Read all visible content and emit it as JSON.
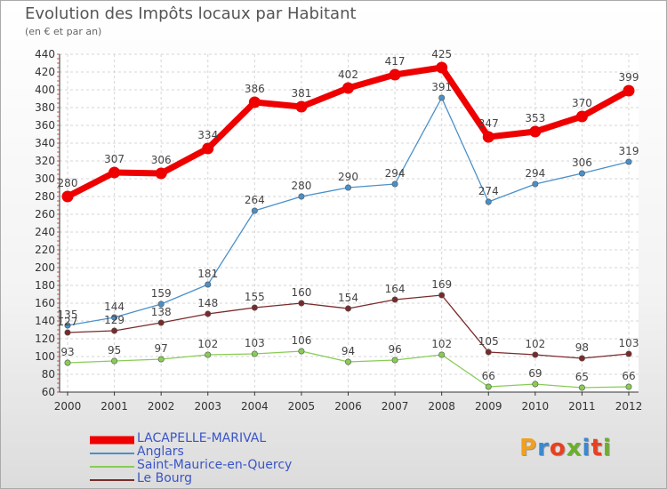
{
  "header": {
    "title": "Evolution des Impôts locaux par Habitant",
    "subtitle": "(en € et par an)"
  },
  "brand": {
    "name": "Proxiti",
    "letter_colors": [
      "#f0a020",
      "#3a88d0",
      "#e84020",
      "#6ab02a",
      "#3a88d0",
      "#e84020",
      "#6ab02a"
    ]
  },
  "chart_data": {
    "type": "line",
    "x": [
      "2000",
      "2001",
      "2002",
      "2003",
      "2004",
      "2005",
      "2006",
      "2007",
      "2008",
      "2009",
      "2010",
      "2011",
      "2012"
    ],
    "ylim": [
      60,
      440
    ],
    "yticks": [
      60,
      80,
      100,
      120,
      140,
      160,
      180,
      200,
      220,
      240,
      260,
      280,
      300,
      320,
      340,
      360,
      380,
      400,
      420,
      440
    ],
    "grid": true,
    "legend_position": "bottom-left",
    "series": [
      {
        "name": "LACAPELLE-MARIVAL",
        "color": "#ee0000",
        "values": [
          280,
          307,
          306,
          334,
          386,
          381,
          402,
          417,
          425,
          347,
          353,
          370,
          399
        ]
      },
      {
        "name": "Anglars",
        "color": "#4a90c8",
        "values": [
          135,
          144,
          159,
          181,
          264,
          280,
          290,
          294,
          391,
          274,
          294,
          306,
          319
        ]
      },
      {
        "name": "Saint-Maurice-en-Quercy",
        "color": "#88cc55",
        "values": [
          93,
          95,
          97,
          102,
          103,
          106,
          94,
          96,
          102,
          66,
          69,
          65,
          66
        ]
      },
      {
        "name": "Le Bourg",
        "color": "#7a2a2a",
        "values": [
          127,
          129,
          138,
          148,
          155,
          160,
          154,
          164,
          169,
          105,
          102,
          98,
          103
        ]
      }
    ]
  }
}
